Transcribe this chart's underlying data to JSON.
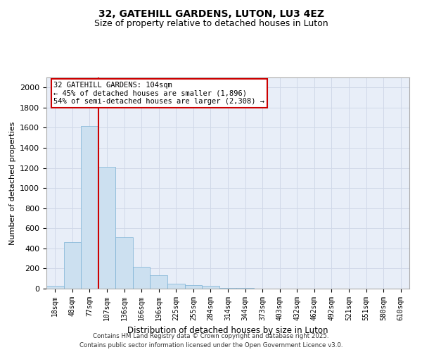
{
  "title_line1": "32, GATEHILL GARDENS, LUTON, LU3 4EZ",
  "title_line2": "Size of property relative to detached houses in Luton",
  "xlabel": "Distribution of detached houses by size in Luton",
  "ylabel": "Number of detached properties",
  "bar_values": [
    30,
    460,
    1620,
    1210,
    510,
    215,
    130,
    50,
    35,
    25,
    10,
    5,
    0,
    0,
    0,
    0,
    0,
    0,
    0,
    0,
    0
  ],
  "bin_labels": [
    "18sqm",
    "48sqm",
    "77sqm",
    "107sqm",
    "136sqm",
    "166sqm",
    "196sqm",
    "225sqm",
    "255sqm",
    "284sqm",
    "314sqm",
    "344sqm",
    "373sqm",
    "403sqm",
    "432sqm",
    "462sqm",
    "492sqm",
    "521sqm",
    "551sqm",
    "580sqm",
    "610sqm"
  ],
  "bar_color": "#cce0f0",
  "bar_edge_color": "#7ab0d4",
  "vertical_line_x": 2.5,
  "vertical_line_color": "#cc0000",
  "annotation_text": "32 GATEHILL GARDENS: 104sqm\n← 45% of detached houses are smaller (1,896)\n54% of semi-detached houses are larger (2,308) →",
  "annotation_box_color": "#cc0000",
  "annotation_bg_color": "#ffffff",
  "ylim": [
    0,
    2100
  ],
  "yticks": [
    0,
    200,
    400,
    600,
    800,
    1000,
    1200,
    1400,
    1600,
    1800,
    2000
  ],
  "grid_color": "#d0d8e8",
  "bg_color": "#e8eef8",
  "footer_line1": "Contains HM Land Registry data © Crown copyright and database right 2025.",
  "footer_line2": "Contains public sector information licensed under the Open Government Licence v3.0.",
  "title_fontsize": 10,
  "subtitle_fontsize": 9,
  "label_fontsize": 8,
  "tick_fontsize": 7
}
